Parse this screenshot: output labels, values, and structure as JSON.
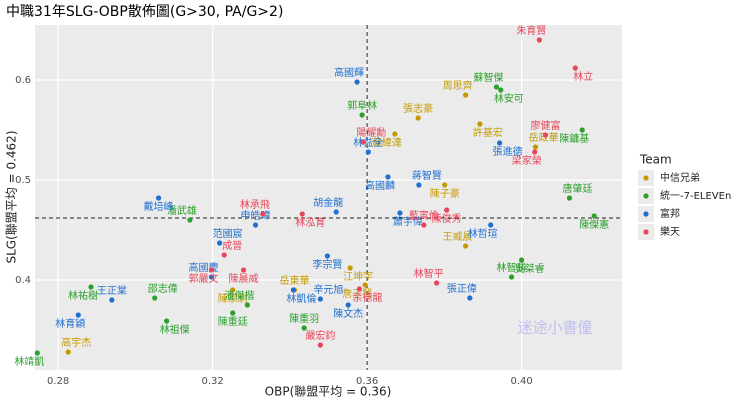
{
  "chart_data": {
    "type": "scatter",
    "title": "中職31年SLG-OBP散佈圖(G>30, PA/G>2)",
    "x_label": "OBP(聯盟平均 = 0.36)",
    "y_label": "SLG(聯盟平均 = 0.462)",
    "legend_title": "Team",
    "watermark": "迷途小書僮",
    "xlim": [
      0.274,
      0.426
    ],
    "ylim": [
      0.31,
      0.655
    ],
    "xticks": [
      0.28,
      0.32,
      0.36,
      {
        "value": 0.4,
        "label": "0.40"
      }
    ],
    "yticks": [
      0.4,
      0.5,
      0.6
    ],
    "grid": true,
    "reference_lines": {
      "x": 0.36,
      "y": 0.462
    },
    "series": [
      {
        "name": "中信兄弟",
        "color": "#c49a00",
        "labels": [
          "周思齊",
          "許基宏",
          "張志豪",
          "蘇緯達",
          "岳政華",
          "陳子豪",
          "王威晨",
          "江坤宇",
          "岳東華",
          "詹子賢",
          "高宇杰",
          "陳家駒"
        ],
        "x": [
          0.3855,
          0.3892,
          0.3732,
          0.3672,
          0.4036,
          0.3801,
          0.3855,
          0.3556,
          0.3412,
          0.3595,
          0.2826,
          0.3252
        ],
        "values": [
          0.585,
          0.556,
          0.562,
          0.546,
          0.533,
          0.495,
          0.434,
          0.412,
          0.39,
          0.395,
          0.328,
          0.39
        ]
      },
      {
        "name": "統一-7-ELEVEn",
        "color": "#2ca02c",
        "labels": [
          "蘇智傑",
          "林安可",
          "郭阜林",
          "陳鏞基",
          "唐肇廷",
          "陳傑憲",
          "潘武雄",
          "吳桀睿",
          "林智勝",
          "林祐樹",
          "邵志偉",
          "陳重廷",
          "潘傑楷",
          "林祖傑",
          "陳重羽",
          "林靖凱"
        ],
        "x": [
          0.3935,
          0.3946,
          0.3587,
          0.4157,
          0.4124,
          0.4188,
          0.3141,
          0.4,
          0.3974,
          0.2885,
          0.305,
          0.3252,
          0.329,
          0.3081,
          0.3437,
          0.2746
        ],
        "values": [
          0.593,
          0.59,
          0.565,
          0.55,
          0.482,
          0.464,
          0.46,
          0.42,
          0.403,
          0.393,
          0.382,
          0.367,
          0.375,
          0.359,
          0.352,
          0.327
        ]
      },
      {
        "name": "富邦",
        "color": "#1f6fd0",
        "labels": [
          "高國輝",
          "張進德",
          "林益全",
          "高國麟",
          "蔣智賢",
          "戴培峰",
          "胡金龍",
          "蕭宇偉",
          "申皓瑋",
          "林哲瑄",
          "范國宸",
          "李宗賢",
          "高國慶",
          "林凱倫",
          "王正棠",
          "林育穎",
          "辛元旭",
          "陳文杰",
          "張正偉"
        ],
        "x": [
          0.3574,
          0.3943,
          0.3603,
          0.3654,
          0.3734,
          0.306,
          0.352,
          0.3685,
          0.3311,
          0.392,
          0.3218,
          0.3497,
          0.3197,
          0.3409,
          0.2939,
          0.2852,
          0.3479,
          0.3551,
          0.3866
        ],
        "values": [
          0.598,
          0.537,
          0.528,
          0.503,
          0.495,
          0.482,
          0.468,
          0.467,
          0.455,
          0.455,
          0.437,
          0.424,
          0.403,
          0.39,
          0.38,
          0.365,
          0.381,
          0.375,
          0.382
        ]
      },
      {
        "name": "樂天",
        "color": "#e8455a",
        "labels": [
          "朱育賢",
          "林立",
          "廖健富",
          "梁家榮",
          "陽耀勳",
          "陳俊秀",
          "林承飛",
          "林泓育",
          "藍寅倫",
          "郭嚴文",
          "成晉",
          "陳晨威",
          "林智平",
          "余德龍",
          "嚴宏鈞"
        ],
        "x": [
          0.4046,
          0.4139,
          0.4062,
          0.4034,
          0.359,
          0.3806,
          0.333,
          0.3432,
          0.3747,
          0.3197,
          0.323,
          0.328,
          0.378,
          0.358,
          0.3479
        ],
        "values": [
          0.64,
          0.612,
          0.545,
          0.528,
          0.538,
          0.47,
          0.466,
          0.466,
          0.455,
          0.41,
          0.425,
          0.41,
          0.397,
          0.391,
          0.335
        ]
      }
    ]
  }
}
